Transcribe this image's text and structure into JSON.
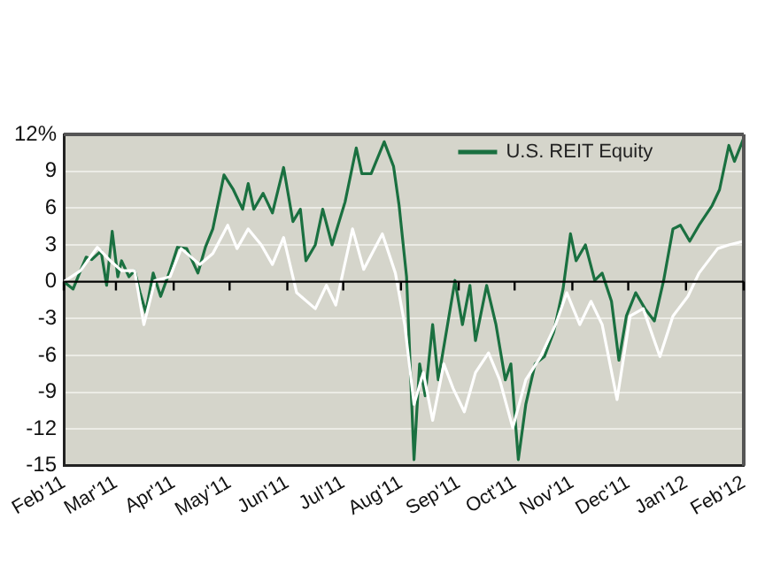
{
  "chart_data": {
    "type": "line",
    "legend": "top right",
    "grid": "y",
    "marker": "none",
    "line_style": "solid",
    "xlim": [
      "2011-02-01",
      "2012-02-01"
    ],
    "xticks": [
      {
        "value": "2011-02-01",
        "label": "Feb'11"
      },
      {
        "value": "2011-03-01",
        "label": "Mar'11"
      },
      {
        "value": "2011-04-01",
        "label": "Apr'11"
      },
      {
        "value": "2011-05-01",
        "label": "May'11"
      },
      {
        "value": "2011-06-01",
        "label": "Jun'11"
      },
      {
        "value": "2011-07-01",
        "label": "Jul'11"
      },
      {
        "value": "2011-08-01",
        "label": "Aug'11"
      },
      {
        "value": "2011-09-01",
        "label": "Sep'11"
      },
      {
        "value": "2011-10-01",
        "label": "Oct'11"
      },
      {
        "value": "2011-11-01",
        "label": "Nov'11"
      },
      {
        "value": "2011-12-01",
        "label": "Dec'11"
      },
      {
        "value": "2012-01-01",
        "label": "Jan'12"
      },
      {
        "value": "2012-02-01",
        "label": "Feb'12"
      }
    ],
    "ylim": [
      -15,
      12
    ],
    "yticks": [
      -15,
      -12,
      -9,
      -6,
      -3,
      0,
      3,
      6,
      9,
      {
        "value": 12,
        "label": "12%"
      }
    ],
    "series": [
      {
        "name": "U.S. REIT Equity",
        "color": "#1a7040",
        "x": [
          "2011-02-01",
          "2011-02-06",
          "2011-02-10",
          "2011-02-13",
          "2011-02-16",
          "2011-02-21",
          "2011-02-24",
          "2011-02-27",
          "2011-03-02",
          "2011-03-04",
          "2011-03-08",
          "2011-03-11",
          "2011-03-14",
          "2011-03-17",
          "2011-03-21",
          "2011-03-25",
          "2011-03-30",
          "2011-04-03",
          "2011-04-08",
          "2011-04-14",
          "2011-04-18",
          "2011-04-22",
          "2011-04-28",
          "2011-05-03",
          "2011-05-08",
          "2011-05-11",
          "2011-05-14",
          "2011-05-19",
          "2011-05-24",
          "2011-05-30",
          "2011-06-04",
          "2011-06-08",
          "2011-06-11",
          "2011-06-16",
          "2011-06-20",
          "2011-06-25",
          "2011-07-02",
          "2011-07-08",
          "2011-07-11",
          "2011-07-16",
          "2011-07-23",
          "2011-07-28",
          "2011-07-31",
          "2011-08-04",
          "2011-08-08",
          "2011-08-11",
          "2011-08-14",
          "2011-08-18",
          "2011-08-21",
          "2011-08-26",
          "2011-08-30",
          "2011-09-03",
          "2011-09-07",
          "2011-09-10",
          "2011-09-16",
          "2011-09-21",
          "2011-09-26",
          "2011-09-29",
          "2011-10-03",
          "2011-10-07",
          "2011-10-12",
          "2011-10-17",
          "2011-10-22",
          "2011-10-27",
          "2011-10-31",
          "2011-11-03",
          "2011-11-08",
          "2011-11-13",
          "2011-11-17",
          "2011-11-22",
          "2011-11-26",
          "2011-11-30",
          "2011-12-05",
          "2011-12-10",
          "2011-12-15",
          "2011-12-20",
          "2011-12-25",
          "2011-12-29",
          "2012-01-03",
          "2012-01-08",
          "2012-01-15",
          "2012-01-19",
          "2012-01-24",
          "2012-01-27",
          "2012-02-01"
        ],
        "values": [
          0,
          -0.6,
          0.9,
          2.0,
          1.8,
          2.5,
          -0.3,
          4.1,
          0.4,
          1.7,
          0.4,
          0.9,
          -0.9,
          -2.5,
          0.7,
          -1.2,
          0.9,
          2.8,
          2.7,
          0.7,
          2.8,
          4.3,
          8.7,
          7.5,
          5.9,
          8.0,
          5.9,
          7.2,
          5.6,
          9.3,
          4.9,
          5.9,
          1.7,
          3.0,
          5.9,
          3.0,
          6.5,
          10.9,
          8.8,
          8.8,
          11.4,
          9.4,
          6.2,
          0.4,
          -14.5,
          -6.7,
          -9.3,
          -3.5,
          -8.0,
          -3.5,
          0.1,
          -3.5,
          -0.3,
          -4.8,
          -0.3,
          -3.5,
          -8.0,
          -6.7,
          -14.5,
          -10.0,
          -6.7,
          -6.1,
          -4.1,
          -0.6,
          3.9,
          1.7,
          3.0,
          0.1,
          0.7,
          -1.6,
          -6.4,
          -2.8,
          -0.9,
          -2.2,
          -3.2,
          0.1,
          4.3,
          4.6,
          3.3,
          4.6,
          6.2,
          7.5,
          11.1,
          9.8,
          11.7
        ]
      },
      {
        "color": "#ffffff",
        "x": [
          "2011-02-01",
          "2011-02-10",
          "2011-02-19",
          "2011-02-26",
          "2011-03-04",
          "2011-03-11",
          "2011-03-16",
          "2011-03-22",
          "2011-03-30",
          "2011-04-05",
          "2011-04-15",
          "2011-04-22",
          "2011-04-30",
          "2011-05-05",
          "2011-05-11",
          "2011-05-18",
          "2011-05-24",
          "2011-05-30",
          "2011-06-06",
          "2011-06-16",
          "2011-06-22",
          "2011-06-27",
          "2011-07-06",
          "2011-07-12",
          "2011-07-22",
          "2011-07-29",
          "2011-08-03",
          "2011-08-08",
          "2011-08-13",
          "2011-08-18",
          "2011-08-24",
          "2011-08-29",
          "2011-09-04",
          "2011-09-10",
          "2011-09-17",
          "2011-09-23",
          "2011-09-30",
          "2011-10-07",
          "2011-10-15",
          "2011-10-23",
          "2011-10-29",
          "2011-11-05",
          "2011-11-11",
          "2011-11-17",
          "2011-11-25",
          "2011-12-02",
          "2011-12-09",
          "2011-12-18",
          "2011-12-25",
          "2012-01-02",
          "2012-01-08",
          "2012-01-18",
          "2012-01-24",
          "2012-02-01"
        ],
        "values": [
          0,
          0.9,
          2.8,
          1.7,
          0.9,
          0.9,
          -3.5,
          0.1,
          0.4,
          2.7,
          1.4,
          2.3,
          4.6,
          2.7,
          4.3,
          3.0,
          1.4,
          3.6,
          -0.9,
          -2.2,
          -0.3,
          -1.9,
          4.3,
          1.0,
          3.9,
          0.7,
          -3.5,
          -10.0,
          -7.4,
          -11.3,
          -6.7,
          -8.7,
          -10.6,
          -7.4,
          -5.8,
          -8.0,
          -11.9,
          -8.0,
          -6.1,
          -3.5,
          -0.9,
          -3.5,
          -1.6,
          -3.5,
          -9.6,
          -2.8,
          -2.2,
          -6.1,
          -2.8,
          -1.2,
          0.7,
          2.7,
          3.0,
          3.3
        ]
      }
    ]
  }
}
